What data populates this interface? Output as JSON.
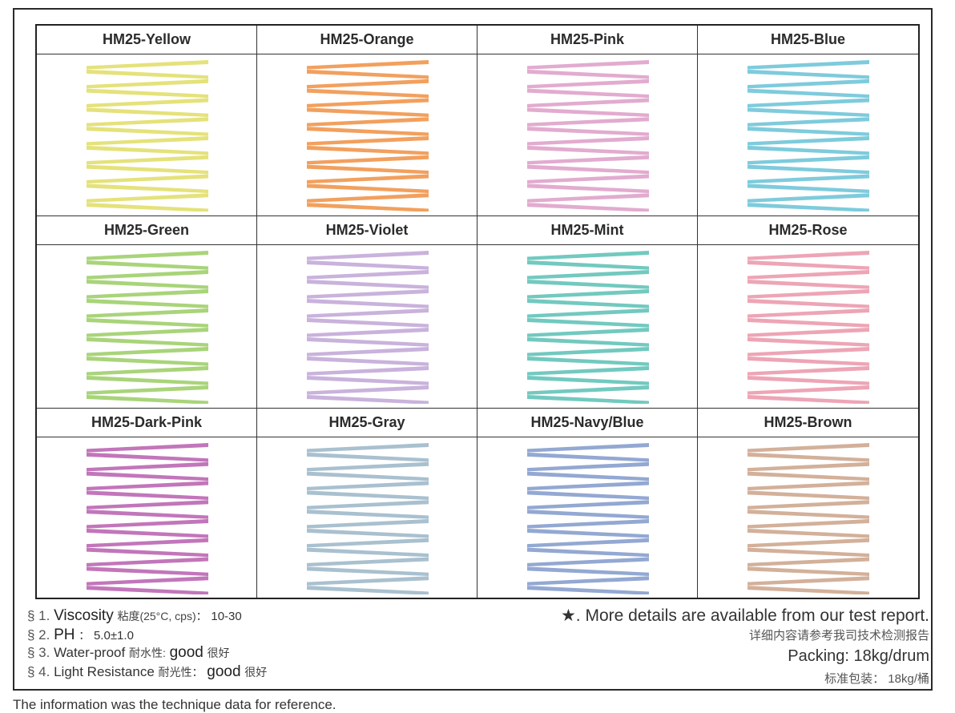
{
  "swatches": [
    {
      "name": "HM25-Yellow",
      "color": "#e4e27a"
    },
    {
      "name": "HM25-Orange",
      "color": "#f2a05e"
    },
    {
      "name": "HM25-Pink",
      "color": "#e2abcf"
    },
    {
      "name": "HM25-Blue",
      "color": "#7ecbdc"
    },
    {
      "name": "HM25-Green",
      "color": "#a9d47a"
    },
    {
      "name": "HM25-Violet",
      "color": "#c9b2dc"
    },
    {
      "name": "HM25-Mint",
      "color": "#72c9bf"
    },
    {
      "name": "HM25-Rose",
      "color": "#eda5b5"
    },
    {
      "name": "HM25-Dark-Pink",
      "color": "#c276ba"
    },
    {
      "name": "HM25-Gray",
      "color": "#a9c0cf"
    },
    {
      "name": "HM25-Navy/Blue",
      "color": "#93a8d2"
    },
    {
      "name": "HM25-Brown",
      "color": "#d3b09a"
    }
  ],
  "specs": [
    {
      "num": "§ 1.",
      "label": "Viscosity",
      "cn": "粘度(25°C, cps)：",
      "value": "10-30",
      "cn_value": ""
    },
    {
      "num": "§ 2.",
      "label": "PH",
      "cn": "：",
      "value": "5.0±1.0",
      "cn_value": ""
    },
    {
      "num": "§ 3.",
      "label": "Water-proof",
      "cn": "耐水性:",
      "value": "good",
      "cn_value": "很好"
    },
    {
      "num": "§ 4.",
      "label": "Light Resistance",
      "cn": "耐光性：",
      "value": "good",
      "cn_value": "很好"
    }
  ],
  "notes": {
    "more_details": "★. More details are available from our test report.",
    "more_details_cn": "详细内容请参考我司技术检测报告",
    "packing": "Packing: 18kg/drum",
    "packing_cn": "标准包装： 18kg/桶"
  },
  "caption": "The information was the technique data for reference."
}
